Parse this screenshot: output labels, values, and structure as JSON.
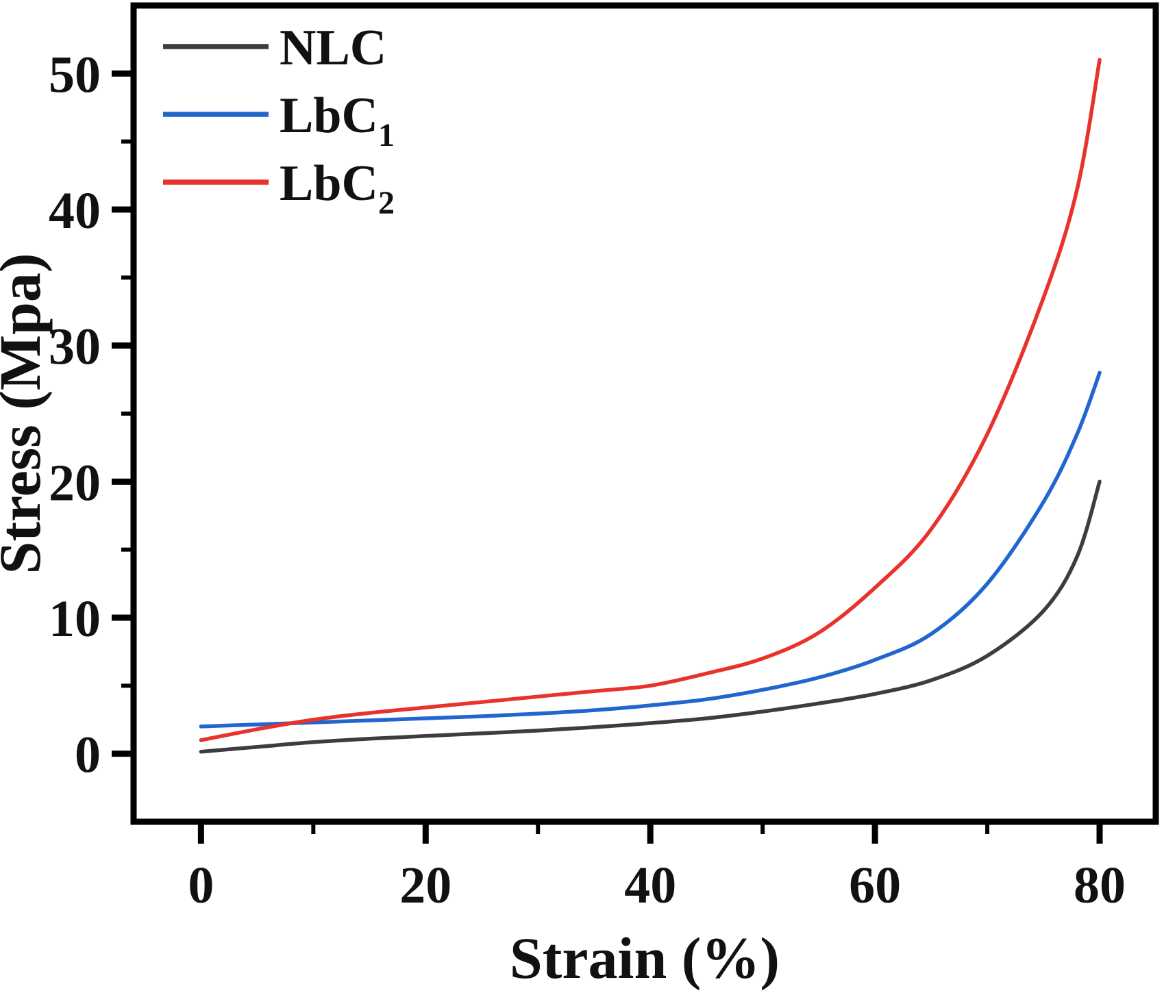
{
  "figure": {
    "background": "#ffffff",
    "axis_color": "#000000",
    "text_color": "#111111"
  },
  "chart_data": {
    "type": "line",
    "xlabel": "Strain (%)",
    "ylabel": "Stress (Mpa)",
    "xlim": [
      -6,
      85
    ],
    "ylim": [
      -5,
      55
    ],
    "x_major_ticks": [
      0,
      20,
      40,
      60,
      80
    ],
    "x_minor_ticks": [
      10,
      30,
      50,
      70
    ],
    "y_major_ticks": [
      0,
      10,
      20,
      30,
      40,
      50
    ],
    "y_minor_ticks": [
      5,
      15,
      25,
      35,
      45
    ],
    "grid": false,
    "legend_position": "top-left",
    "x_sample_points": [
      0,
      5,
      10,
      15,
      20,
      25,
      30,
      35,
      40,
      45,
      50,
      55,
      60,
      65,
      70,
      75,
      78,
      80
    ],
    "series": [
      {
        "name": "NLC",
        "label_main": "NLC",
        "label_sub": "",
        "color": "#3d3d3d",
        "values": [
          0.15,
          0.5,
          0.85,
          1.1,
          1.3,
          1.5,
          1.7,
          1.95,
          2.25,
          2.6,
          3.1,
          3.7,
          4.4,
          5.4,
          7.2,
          10.5,
          14.5,
          20
        ]
      },
      {
        "name": "LbC1",
        "label_main": "LbC",
        "label_sub": "1",
        "color": "#2166cf",
        "values": [
          2.0,
          2.15,
          2.3,
          2.45,
          2.6,
          2.75,
          2.95,
          3.2,
          3.55,
          4.0,
          4.7,
          5.6,
          6.9,
          8.8,
          12.5,
          18.5,
          23.5,
          28
        ]
      },
      {
        "name": "LbC2",
        "label_main": "LbC",
        "label_sub": "2",
        "color": "#e8332c",
        "values": [
          1.0,
          1.8,
          2.5,
          3.0,
          3.4,
          3.8,
          4.2,
          4.6,
          5.0,
          5.9,
          7.0,
          8.9,
          12.2,
          16.5,
          23.5,
          33.5,
          41.5,
          51
        ]
      }
    ]
  }
}
